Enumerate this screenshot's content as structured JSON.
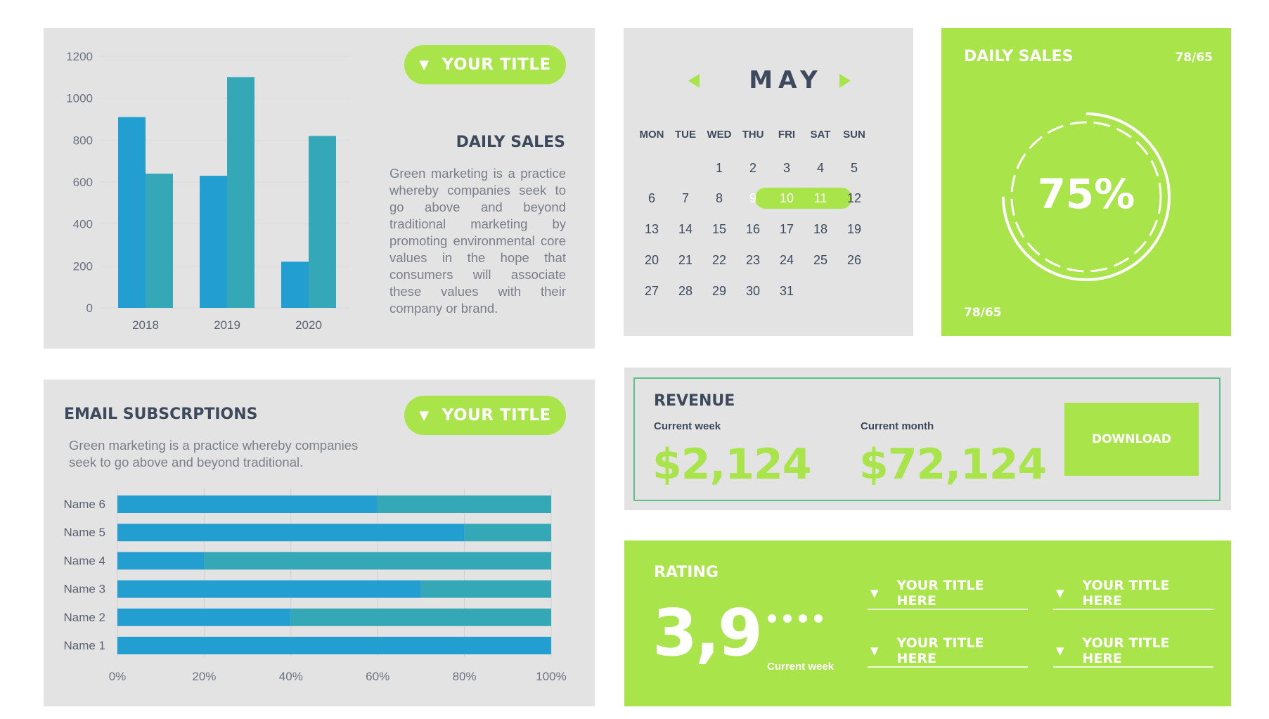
{
  "top_left": {
    "pill_label": "YOUR TITLE",
    "heading": "DAILY SALES",
    "paragraph": "Green marketing is a practice whereby companies seek to go above and beyond traditional marketing by promoting environmental core values in the hope that consumers will associate these values with their company or brand."
  },
  "chart_data": [
    {
      "type": "bar",
      "categories": [
        "2018",
        "2019",
        "2020"
      ],
      "series": [
        {
          "values": [
            910,
            630,
            220
          ]
        },
        {
          "values": [
            640,
            1100,
            820
          ]
        }
      ],
      "ylim": [
        0,
        1200
      ],
      "yticks": [
        "0",
        "200",
        "400",
        "600",
        "800",
        "1000",
        "1200"
      ],
      "grid": true,
      "colors": [
        "#239ed1",
        "#35a8b8"
      ]
    },
    {
      "type": "bar",
      "orientation": "horizontal",
      "stacked": true,
      "categories": [
        "Name 1",
        "Name 2",
        "Name 3",
        "Name 4",
        "Name 5",
        "Name 6"
      ],
      "series": [
        {
          "values": [
            100,
            40,
            70,
            20,
            80,
            60
          ]
        },
        {
          "values": [
            0,
            60,
            30,
            80,
            20,
            40
          ]
        }
      ],
      "xlim": [
        0,
        100
      ],
      "xticks": [
        "0%",
        "20%",
        "40%",
        "60%",
        "80%",
        "100%"
      ],
      "grid": true,
      "colors": [
        "#239ed1",
        "#35a8b8"
      ]
    }
  ],
  "email": {
    "heading": "EMAIL SUBSCRPTIONS",
    "pill_label": "YOUR TITLE",
    "paragraph": "Green marketing is a practice whereby companies seek to go above and beyond traditional."
  },
  "calendar": {
    "month": "MAY",
    "days_of_week": [
      "MON",
      "TUE",
      "WED",
      "THU",
      "FRI",
      "SAT",
      "SUN"
    ],
    "weeks": [
      [
        "",
        "",
        "1",
        "2",
        "3",
        "4",
        "5"
      ],
      [
        "6",
        "7",
        "8",
        "9",
        "10",
        "11",
        "12"
      ],
      [
        "13",
        "14",
        "15",
        "16",
        "17",
        "18",
        "19"
      ],
      [
        "20",
        "21",
        "22",
        "23",
        "24",
        "25",
        "26"
      ],
      [
        "27",
        "28",
        "29",
        "30",
        "31",
        "",
        ""
      ]
    ],
    "highlighted": [
      "9",
      "10",
      "11"
    ]
  },
  "daily_sales": {
    "title": "DAILY SALES",
    "ratio_top": "78/65",
    "percent": "75%",
    "ratio_bottom": "78/65"
  },
  "revenue": {
    "title": "REVENUE",
    "week_label": "Current week",
    "week_value": "$2,124",
    "month_label": "Current month",
    "month_value": "$72,124",
    "button": "DOWNLOAD"
  },
  "rating": {
    "title": "RATING",
    "value": "3,9",
    "sub_label": "Current week",
    "items": [
      "YOUR TITLE HERE",
      "YOUR TITLE HERE",
      "YOUR TITLE HERE",
      "YOUR TITLE HERE"
    ]
  }
}
